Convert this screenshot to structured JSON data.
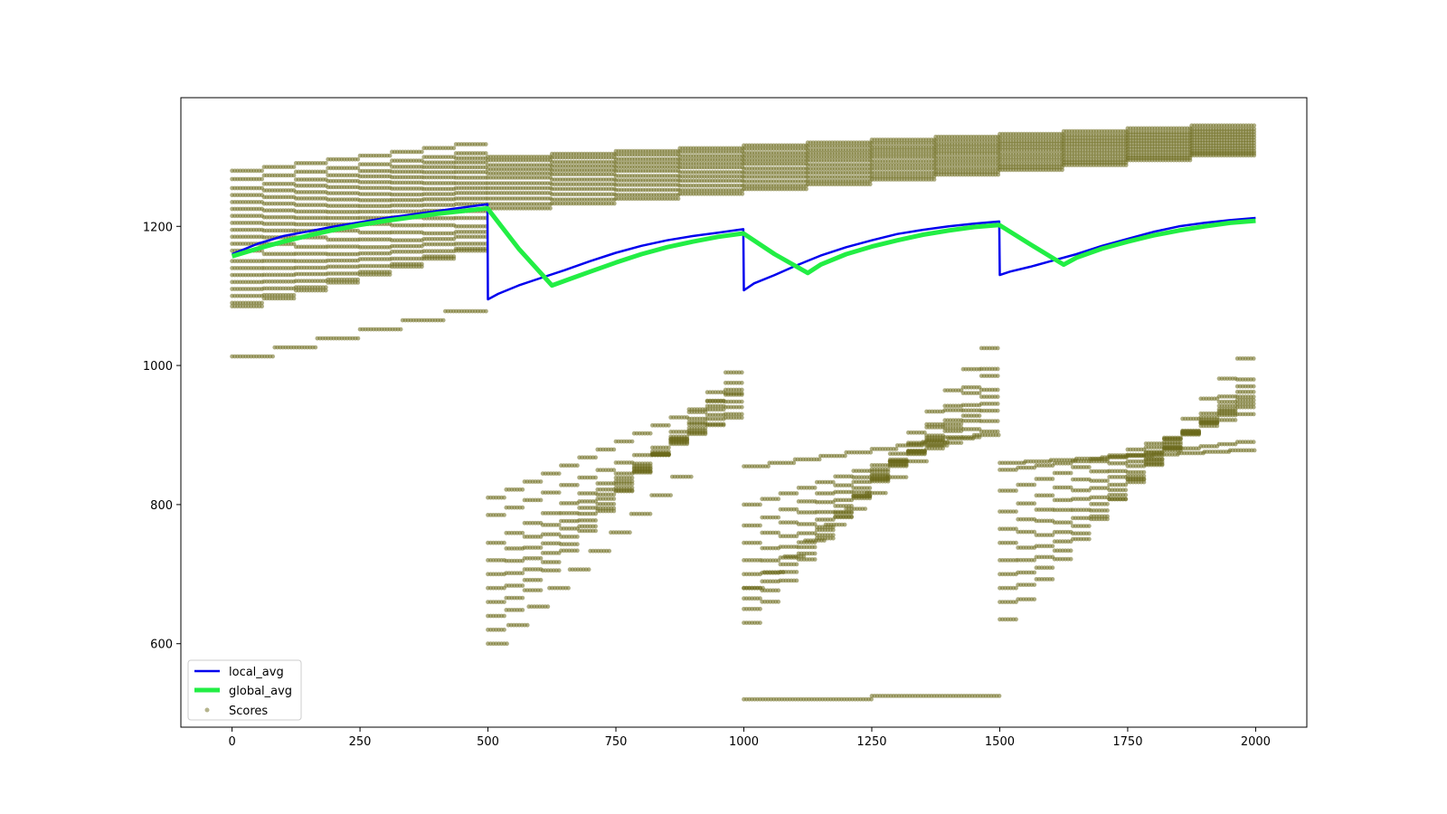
{
  "chart_data": {
    "type": "line",
    "title": "",
    "xlabel": "",
    "ylabel": "",
    "xlim": [
      -100,
      2100
    ],
    "ylim": [
      480,
      1385
    ],
    "x_ticks": [
      0,
      250,
      500,
      750,
      1000,
      1250,
      1500,
      1750,
      2000
    ],
    "y_ticks": [
      600,
      800,
      1000,
      1200
    ],
    "grid": false,
    "legend_position": "lower-left",
    "colors": {
      "local_avg": "#0000ee",
      "global_avg": "#22ee44",
      "scores": "#6b6a1c"
    },
    "series": [
      {
        "name": "local_avg",
        "type": "line",
        "points": [
          [
            0,
            1160
          ],
          [
            50,
            1175
          ],
          [
            100,
            1186
          ],
          [
            150,
            1193
          ],
          [
            200,
            1200
          ],
          [
            250,
            1206
          ],
          [
            300,
            1212
          ],
          [
            350,
            1217
          ],
          [
            400,
            1222
          ],
          [
            450,
            1227
          ],
          [
            499,
            1232
          ],
          [
            500,
            1095
          ],
          [
            520,
            1103
          ],
          [
            560,
            1115
          ],
          [
            600,
            1125
          ],
          [
            650,
            1137
          ],
          [
            700,
            1150
          ],
          [
            750,
            1162
          ],
          [
            800,
            1172
          ],
          [
            850,
            1180
          ],
          [
            900,
            1186
          ],
          [
            950,
            1191
          ],
          [
            999,
            1196
          ],
          [
            1000,
            1108
          ],
          [
            1020,
            1118
          ],
          [
            1060,
            1130
          ],
          [
            1100,
            1143
          ],
          [
            1150,
            1158
          ],
          [
            1200,
            1170
          ],
          [
            1250,
            1180
          ],
          [
            1300,
            1189
          ],
          [
            1350,
            1195
          ],
          [
            1400,
            1200
          ],
          [
            1450,
            1204
          ],
          [
            1499,
            1207
          ],
          [
            1500,
            1130
          ],
          [
            1520,
            1135
          ],
          [
            1560,
            1142
          ],
          [
            1600,
            1150
          ],
          [
            1650,
            1160
          ],
          [
            1700,
            1172
          ],
          [
            1750,
            1182
          ],
          [
            1800,
            1192
          ],
          [
            1850,
            1200
          ],
          [
            1900,
            1205
          ],
          [
            1950,
            1209
          ],
          [
            2000,
            1212
          ]
        ]
      },
      {
        "name": "global_avg",
        "type": "line",
        "points": [
          [
            0,
            1157
          ],
          [
            50,
            1168
          ],
          [
            100,
            1178
          ],
          [
            150,
            1187
          ],
          [
            200,
            1195
          ],
          [
            250,
            1202
          ],
          [
            300,
            1208
          ],
          [
            350,
            1213
          ],
          [
            400,
            1218
          ],
          [
            450,
            1222
          ],
          [
            499,
            1226
          ],
          [
            560,
            1168
          ],
          [
            625,
            1115
          ],
          [
            700,
            1135
          ],
          [
            750,
            1148
          ],
          [
            800,
            1160
          ],
          [
            850,
            1170
          ],
          [
            900,
            1178
          ],
          [
            950,
            1185
          ],
          [
            999,
            1190
          ],
          [
            1060,
            1160
          ],
          [
            1125,
            1133
          ],
          [
            1150,
            1145
          ],
          [
            1200,
            1160
          ],
          [
            1250,
            1171
          ],
          [
            1300,
            1180
          ],
          [
            1350,
            1188
          ],
          [
            1400,
            1194
          ],
          [
            1450,
            1199
          ],
          [
            1499,
            1202
          ],
          [
            1560,
            1174
          ],
          [
            1625,
            1145
          ],
          [
            1650,
            1155
          ],
          [
            1700,
            1168
          ],
          [
            1750,
            1178
          ],
          [
            1800,
            1187
          ],
          [
            1850,
            1194
          ],
          [
            1900,
            1200
          ],
          [
            1950,
            1205
          ],
          [
            2000,
            1208
          ]
        ]
      },
      {
        "name": "Scores",
        "type": "scatter",
        "note_shape": "horizontal step-traces of scores; each trace [x_start, x_end, y_start, y_end, steps]",
        "traces": [
          [
            0,
            500,
            1280,
            1318,
            8
          ],
          [
            0,
            500,
            1268,
            1305,
            8
          ],
          [
            0,
            500,
            1255,
            1298,
            8
          ],
          [
            0,
            500,
            1245,
            1292,
            8
          ],
          [
            0,
            500,
            1235,
            1285,
            8
          ],
          [
            0,
            500,
            1225,
            1278,
            8
          ],
          [
            0,
            500,
            1215,
            1270,
            8
          ],
          [
            0,
            500,
            1205,
            1262,
            8
          ],
          [
            0,
            500,
            1195,
            1255,
            8
          ],
          [
            0,
            500,
            1185,
            1248,
            8
          ],
          [
            0,
            500,
            1175,
            1240,
            8
          ],
          [
            0,
            500,
            1165,
            1232,
            8
          ],
          [
            0,
            500,
            1150,
            1222,
            8
          ],
          [
            0,
            500,
            1140,
            1212,
            8
          ],
          [
            0,
            500,
            1130,
            1200,
            8
          ],
          [
            0,
            500,
            1120,
            1192,
            8
          ],
          [
            0,
            500,
            1110,
            1185,
            8
          ],
          [
            0,
            500,
            1100,
            1175,
            8
          ],
          [
            0,
            500,
            1090,
            1168,
            8
          ],
          [
            0,
            500,
            1085,
            1165,
            8
          ],
          [
            0,
            500,
            1013,
            1078,
            6
          ],
          [
            500,
            2000,
            1300,
            1345,
            12
          ],
          [
            500,
            2000,
            1295,
            1340,
            12
          ],
          [
            500,
            2000,
            1288,
            1336,
            12
          ],
          [
            500,
            2000,
            1282,
            1332,
            12
          ],
          [
            500,
            2000,
            1276,
            1328,
            12
          ],
          [
            500,
            2000,
            1270,
            1324,
            12
          ],
          [
            500,
            2000,
            1262,
            1320,
            12
          ],
          [
            500,
            2000,
            1255,
            1316,
            12
          ],
          [
            500,
            2000,
            1248,
            1312,
            12
          ],
          [
            500,
            2000,
            1240,
            1308,
            12
          ],
          [
            500,
            2000,
            1232,
            1305,
            12
          ],
          [
            500,
            2000,
            1226,
            1302,
            12
          ],
          [
            500,
            1000,
            620,
            990,
            14
          ],
          [
            500,
            1000,
            640,
            975,
            14
          ],
          [
            500,
            1000,
            660,
            965,
            14
          ],
          [
            500,
            1000,
            680,
            958,
            14
          ],
          [
            500,
            1000,
            700,
            948,
            14
          ],
          [
            500,
            1000,
            720,
            940,
            14
          ],
          [
            500,
            1000,
            745,
            930,
            14
          ],
          [
            500,
            1000,
            785,
            925,
            14
          ],
          [
            500,
            1000,
            810,
            960,
            14
          ],
          [
            500,
            900,
            600,
            840,
            10
          ],
          [
            1000,
            1500,
            520,
            525,
            2
          ],
          [
            1000,
            1500,
            630,
            1025,
            14
          ],
          [
            1000,
            1500,
            650,
            995,
            14
          ],
          [
            1000,
            1500,
            665,
            985,
            14
          ],
          [
            1000,
            1500,
            680,
            965,
            14
          ],
          [
            1000,
            1500,
            700,
            955,
            14
          ],
          [
            1000,
            1500,
            720,
            945,
            14
          ],
          [
            1000,
            1500,
            745,
            935,
            14
          ],
          [
            1000,
            1500,
            770,
            920,
            14
          ],
          [
            1000,
            1500,
            800,
            905,
            14
          ],
          [
            1000,
            1500,
            855,
            900,
            10
          ],
          [
            1000,
            1400,
            680,
            885,
            10
          ],
          [
            1500,
            2000,
            635,
            1010,
            14
          ],
          [
            1500,
            2000,
            660,
            980,
            14
          ],
          [
            1500,
            2000,
            680,
            970,
            14
          ],
          [
            1500,
            2000,
            700,
            962,
            14
          ],
          [
            1500,
            2000,
            720,
            955,
            14
          ],
          [
            1500,
            2000,
            745,
            950,
            14
          ],
          [
            1500,
            2000,
            765,
            945,
            14
          ],
          [
            1500,
            2000,
            790,
            940,
            14
          ],
          [
            1500,
            2000,
            820,
            930,
            14
          ],
          [
            1500,
            2000,
            850,
            890,
            14
          ],
          [
            1500,
            2000,
            860,
            878,
            10
          ]
        ]
      }
    ]
  }
}
